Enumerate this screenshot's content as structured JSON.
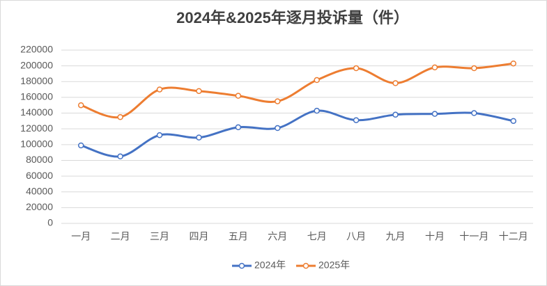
{
  "chart_data": {
    "type": "line",
    "title": "2024年&2025年逐月投诉量（件）",
    "categories": [
      "一月",
      "二月",
      "三月",
      "四月",
      "五月",
      "六月",
      "七月",
      "八月",
      "九月",
      "十月",
      "十一月",
      "十二月"
    ],
    "series": [
      {
        "name": "2024年",
        "color": "#4472c4",
        "values": [
          99000,
          85000,
          112000,
          109000,
          122000,
          121000,
          143000,
          131000,
          138000,
          139000,
          140000,
          130000
        ]
      },
      {
        "name": "2025年",
        "color": "#ed7d31",
        "values": [
          150000,
          135000,
          170000,
          168000,
          162000,
          155000,
          182000,
          197000,
          178000,
          198000,
          197000,
          203000
        ]
      }
    ],
    "ylim": [
      0,
      220000
    ],
    "yticks": [
      0,
      20000,
      40000,
      60000,
      80000,
      100000,
      120000,
      140000,
      160000,
      180000,
      200000,
      220000
    ],
    "grid": true,
    "smooth": true,
    "legend": "bottom"
  }
}
